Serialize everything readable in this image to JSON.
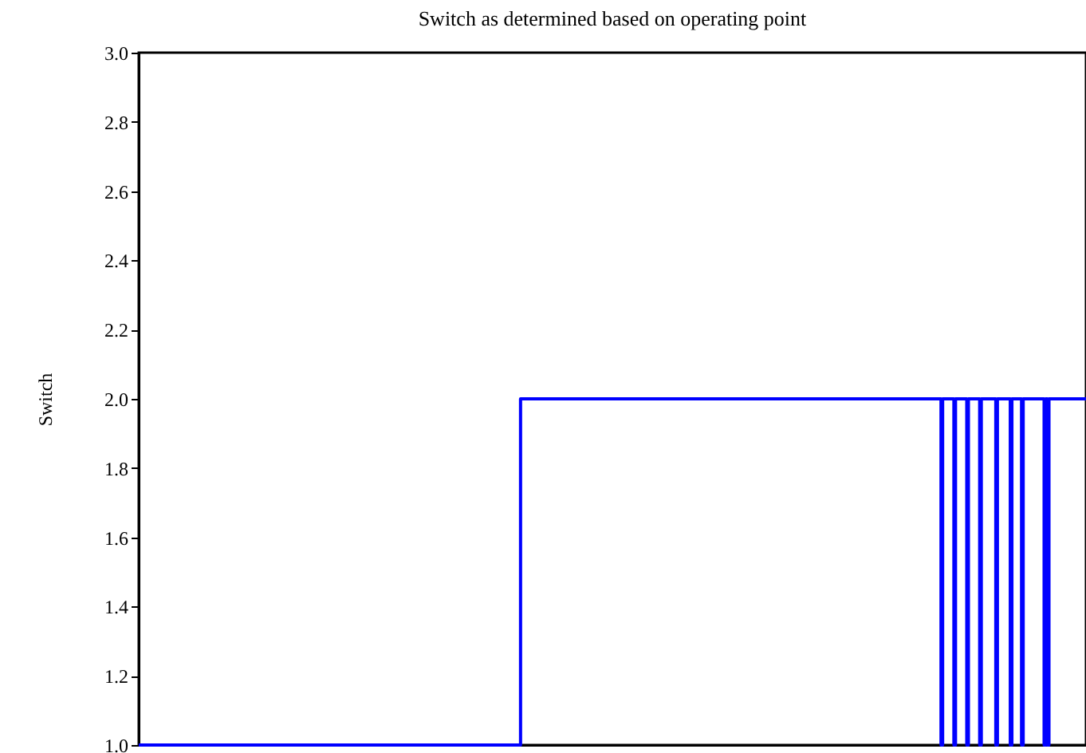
{
  "chart_data": {
    "type": "step",
    "title": "Switch as determined based on operating point",
    "ylabel": "Switch",
    "ylim": [
      1,
      3
    ],
    "yticks": [
      {
        "value": 1,
        "label": "1.0"
      },
      {
        "value": 1.2,
        "label": "1.2"
      },
      {
        "value": 1.4,
        "label": "1.4"
      },
      {
        "value": 1.6,
        "label": "1.6"
      },
      {
        "value": 1.8,
        "label": "1.8"
      },
      {
        "value": 2,
        "label": "2.0"
      },
      {
        "value": 2.2,
        "label": "2.2"
      },
      {
        "value": 2.4,
        "label": "2.4"
      },
      {
        "value": 2.6,
        "label": "2.6"
      },
      {
        "value": 2.8,
        "label": "2.8"
      },
      {
        "value": 3,
        "label": "3.0"
      }
    ],
    "tick_labels": "y",
    "grid": false,
    "marker": "none",
    "line_style": "solid",
    "categories": [
      null,
      null,
      null,
      null,
      null,
      null,
      null,
      null,
      null,
      null,
      null,
      null,
      null,
      null,
      null,
      null,
      null,
      null,
      null,
      null,
      null,
      null,
      null,
      null,
      null,
      null,
      null,
      null,
      null,
      null,
      null,
      null,
      null,
      null,
      null,
      null,
      null,
      null,
      null,
      null,
      null,
      null,
      null,
      null,
      null,
      null,
      null,
      null,
      null,
      null,
      null,
      null,
      null,
      null,
      null,
      null,
      null,
      null,
      null,
      null,
      null,
      null,
      null,
      null,
      null,
      null,
      null,
      null,
      null,
      null,
      null,
      null,
      null,
      null,
      null,
      null,
      null,
      null,
      null,
      null,
      null,
      null,
      null,
      null,
      null,
      null,
      null,
      null,
      null,
      null,
      null,
      null,
      null,
      null,
      null,
      null,
      null,
      null,
      null,
      null,
      null,
      null,
      null,
      null,
      null,
      null,
      null,
      null,
      null,
      null,
      null,
      null,
      null,
      null,
      null,
      null,
      null,
      null,
      null,
      null,
      null,
      null,
      null,
      null,
      null,
      null,
      null,
      null,
      null,
      null,
      null,
      null,
      null,
      null,
      null,
      null,
      null,
      null,
      null,
      null,
      null,
      null,
      null,
      null,
      null,
      null,
      null,
      null,
      null,
      null,
      null,
      null,
      null,
      null,
      null,
      null,
      null,
      null,
      null,
      null,
      null,
      null,
      null,
      null,
      null,
      null,
      null,
      null,
      null,
      null,
      null,
      null,
      null,
      null,
      null,
      null,
      null,
      null,
      null,
      null,
      null,
      null,
      null,
      null,
      null,
      null,
      null,
      null,
      null,
      null,
      null,
      null,
      null,
      null,
      null,
      null,
      null,
      null,
      null,
      null,
      null,
      null,
      null,
      null,
      null,
      null,
      null,
      null,
      null,
      null,
      null,
      null,
      null,
      null,
      null,
      null,
      null,
      null,
      null,
      null,
      null,
      null,
      null,
      null,
      null,
      null,
      null,
      null,
      null,
      null,
      null,
      null,
      null,
      null,
      null,
      null,
      null,
      null,
      null,
      null,
      null,
      null,
      null,
      null,
      null,
      null,
      null,
      null,
      null,
      null,
      null,
      null,
      null,
      null,
      null,
      null,
      null,
      null,
      null,
      null,
      null,
      null,
      null,
      null,
      null,
      null,
      null,
      null,
      null,
      null,
      null,
      null,
      null,
      null,
      null,
      null,
      null,
      null,
      null,
      null,
      null,
      null,
      null,
      null,
      null,
      null,
      null,
      null,
      null,
      null,
      null,
      null,
      null,
      null,
      null,
      null,
      null,
      null,
      null,
      null,
      null,
      null,
      null,
      null,
      null,
      null,
      null,
      null,
      null,
      null,
      null,
      null,
      null,
      null,
      null,
      null,
      null,
      null,
      null,
      null,
      null,
      null,
      null,
      null,
      null,
      null,
      null,
      null,
      null,
      null,
      null,
      null,
      null,
      null,
      null,
      null,
      null,
      null,
      null,
      null,
      null,
      null,
      null,
      null,
      null,
      null,
      null,
      null,
      null,
      null,
      null,
      null,
      null,
      null,
      null,
      null,
      null,
      null,
      null,
      null,
      null,
      null,
      null,
      null,
      null,
      null,
      null,
      null,
      null,
      null,
      null,
      null,
      null,
      null,
      null,
      null,
      null,
      null,
      null,
      null,
      null,
      null,
      null,
      null,
      null,
      null,
      null,
      null,
      null,
      null,
      null,
      null,
      null,
      null,
      null,
      null,
      null,
      null,
      null,
      null,
      null,
      null,
      null,
      null,
      null,
      null,
      null,
      null,
      null,
      null,
      null,
      null,
      null,
      null,
      null,
      null,
      null,
      null,
      null,
      null,
      null,
      null,
      null,
      null,
      null,
      null,
      null,
      null,
      null,
      null,
      null,
      null,
      null,
      null,
      null,
      null,
      null,
      null,
      null,
      null,
      null,
      null,
      null,
      null,
      null,
      null,
      null,
      null,
      null,
      null,
      null,
      null,
      null,
      null,
      null,
      null,
      null,
      null,
      null,
      null,
      null,
      null,
      null,
      null,
      null,
      null,
      null,
      null,
      null,
      null,
      null,
      null,
      null,
      null,
      null,
      null,
      null,
      null,
      null,
      null,
      null,
      null,
      null,
      null,
      null,
      null,
      null,
      null,
      null,
      null,
      null,
      null,
      null,
      null,
      null,
      null,
      null,
      null,
      null,
      null,
      null,
      null,
      null,
      null,
      null,
      null,
      null,
      null,
      null,
      null,
      null,
      null,
      null,
      null,
      null,
      null,
      null,
      null,
      null,
      null,
      null,
      null,
      null,
      null,
      null,
      null,
      null,
      null,
      null,
      null,
      null,
      null,
      null,
      null,
      null,
      null,
      null,
      null,
      null,
      null,
      null,
      null,
      null,
      null,
      null,
      null,
      null,
      null,
      null,
      null,
      null,
      null,
      null,
      null,
      null,
      null,
      null,
      null,
      null,
      null,
      null,
      null,
      null,
      null,
      null,
      null,
      null,
      null,
      null,
      null,
      null,
      null,
      null,
      null,
      null,
      null,
      null,
      null,
      null,
      null,
      null,
      null,
      null,
      null,
      null,
      null,
      null,
      null,
      null
    ],
    "series": [
      {
        "color": "#0000ff",
        "values": [
          1,
          1,
          1,
          1,
          1,
          1,
          1,
          1,
          1,
          1,
          1,
          1,
          1,
          1,
          1,
          1,
          1,
          1,
          1,
          1,
          1,
          1,
          1,
          1,
          1,
          1,
          1,
          1,
          1,
          1,
          1,
          1,
          1,
          1,
          1,
          1,
          1,
          1,
          1,
          1,
          1,
          1,
          1,
          1,
          1,
          1,
          1,
          1,
          1,
          1,
          1,
          1,
          1,
          1,
          1,
          1,
          1,
          1,
          1,
          1,
          1,
          1,
          1,
          1,
          1,
          1,
          1,
          1,
          1,
          1,
          1,
          1,
          1,
          1,
          1,
          1,
          1,
          1,
          1,
          1,
          1,
          1,
          1,
          1,
          1,
          1,
          1,
          1,
          1,
          1,
          1,
          1,
          1,
          1,
          1,
          1,
          1,
          1,
          1,
          1,
          1,
          1,
          1,
          1,
          1,
          1,
          1,
          1,
          1,
          1,
          1,
          1,
          1,
          1,
          1,
          1,
          1,
          1,
          1,
          1,
          1,
          1,
          1,
          1,
          1,
          1,
          1,
          1,
          1,
          1,
          1,
          1,
          1,
          1,
          1,
          1,
          1,
          1,
          1,
          1,
          1,
          1,
          1,
          1,
          1,
          1,
          1,
          1,
          1,
          1,
          1,
          1,
          1,
          1,
          1,
          1,
          1,
          1,
          1,
          1,
          1,
          1,
          1,
          1,
          1,
          1,
          1,
          1,
          1,
          1,
          1,
          1,
          1,
          1,
          1,
          1,
          1,
          1,
          1,
          1,
          1,
          1,
          1,
          1,
          1,
          1,
          1,
          1,
          1,
          1,
          1,
          1,
          1,
          1,
          1,
          1,
          1,
          1,
          1,
          1,
          1,
          1,
          1,
          1,
          1,
          1,
          1,
          1,
          1,
          1,
          1,
          1,
          1,
          1,
          1,
          1,
          1,
          1,
          1,
          1,
          1,
          1,
          1,
          1,
          1,
          1,
          1,
          1,
          1,
          1,
          1,
          1,
          1,
          1,
          1,
          1,
          1,
          2,
          2,
          2,
          2,
          2,
          2,
          2,
          2,
          2,
          2,
          2,
          2,
          2,
          2,
          2,
          2,
          2,
          2,
          2,
          2,
          2,
          2,
          2,
          2,
          2,
          2,
          2,
          2,
          2,
          2,
          2,
          2,
          2,
          2,
          2,
          2,
          2,
          2,
          2,
          2,
          2,
          2,
          2,
          2,
          2,
          2,
          2,
          2,
          2,
          2,
          2,
          2,
          2,
          2,
          2,
          2,
          2,
          2,
          2,
          2,
          2,
          2,
          2,
          2,
          2,
          2,
          2,
          2,
          2,
          2,
          2,
          2,
          2,
          2,
          2,
          2,
          2,
          2,
          2,
          2,
          2,
          2,
          2,
          2,
          2,
          2,
          2,
          2,
          2,
          2,
          2,
          2,
          2,
          2,
          2,
          2,
          2,
          2,
          2,
          2,
          2,
          2,
          2,
          2,
          2,
          2,
          2,
          2,
          2,
          2,
          2,
          2,
          2,
          2,
          2,
          2,
          2,
          2,
          2,
          2,
          2,
          2,
          2,
          2,
          2,
          2,
          2,
          2,
          2,
          2,
          2,
          2,
          2,
          2,
          2,
          2,
          2,
          2,
          2,
          2,
          2,
          2,
          2,
          2,
          2,
          2,
          2,
          2,
          2,
          2,
          2,
          2,
          2,
          2,
          2,
          2,
          2,
          2,
          2,
          2,
          2,
          2,
          2,
          2,
          2,
          2,
          2,
          2,
          2,
          2,
          2,
          2,
          2,
          2,
          2,
          2,
          2,
          2,
          2,
          2,
          2,
          2,
          2,
          2,
          2,
          2,
          2,
          2,
          2,
          2,
          2,
          2,
          2,
          2,
          2,
          2,
          2,
          2,
          2,
          2,
          2,
          2,
          2,
          2,
          2,
          2,
          2,
          2,
          2,
          2,
          2,
          2,
          2,
          2,
          2,
          2,
          2,
          2,
          2,
          2,
          2,
          2,
          2,
          2,
          2,
          2,
          2,
          2,
          2,
          2,
          2,
          2,
          2,
          2,
          2,
          2,
          2,
          2,
          2,
          2,
          2,
          2,
          2,
          2,
          2,
          2,
          2,
          2,
          2,
          2,
          2,
          2,
          2,
          2,
          2,
          2,
          2,
          2,
          2,
          2,
          2,
          1,
          2,
          2,
          2,
          2,
          2,
          2,
          2,
          1,
          2,
          2,
          2,
          2,
          2,
          2,
          2,
          1,
          2,
          2,
          2,
          2,
          2,
          2,
          2,
          1,
          2,
          2,
          2,
          2,
          2,
          2,
          2,
          2,
          2,
          1,
          2,
          2,
          2,
          2,
          2,
          2,
          2,
          2,
          1,
          2,
          2,
          2,
          2,
          2,
          2,
          1,
          2,
          2,
          2,
          2,
          2,
          2,
          2,
          2,
          2,
          2,
          2,
          2,
          2,
          1,
          2,
          1,
          2,
          2,
          2,
          2,
          2,
          2,
          2,
          2,
          2,
          2,
          2,
          2,
          2,
          2,
          2,
          2,
          2,
          2,
          2,
          2,
          2,
          2,
          2,
          2
        ]
      }
    ]
  }
}
